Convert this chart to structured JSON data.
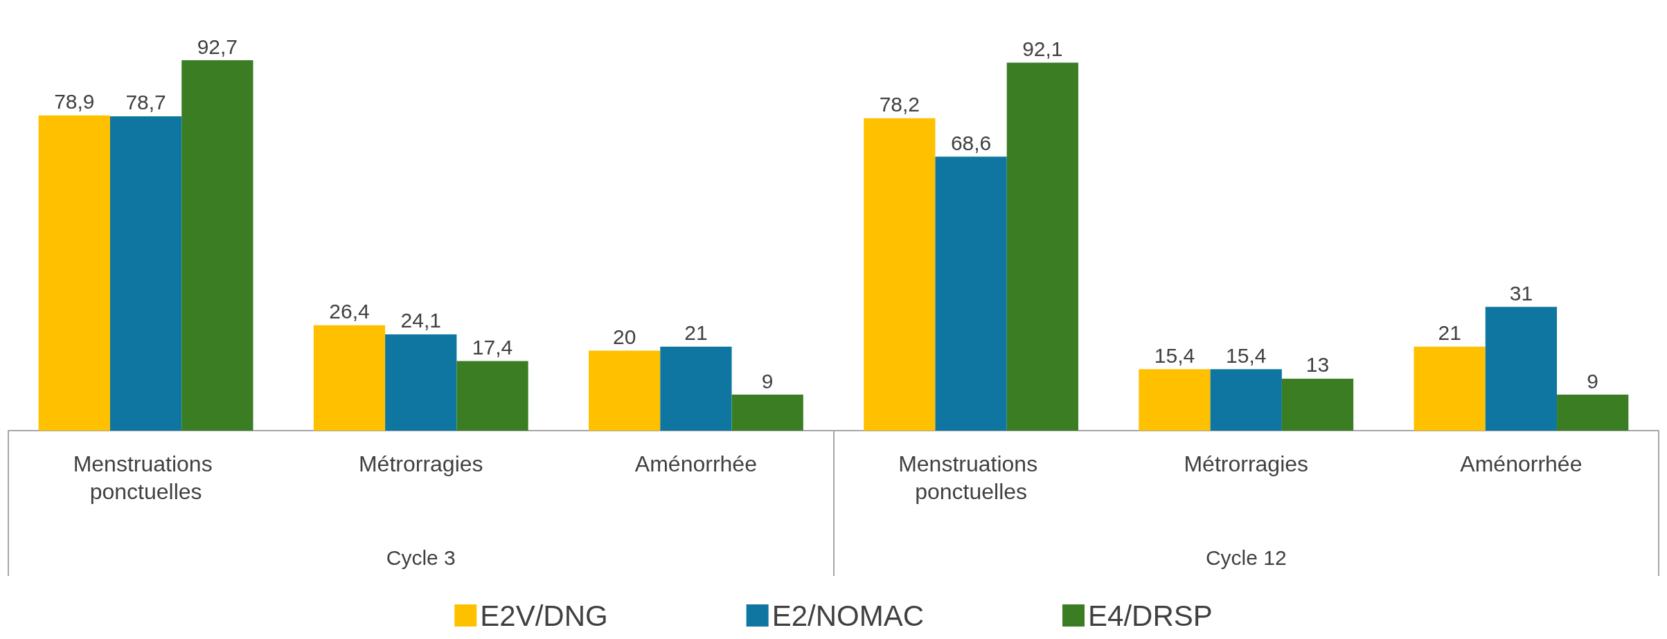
{
  "chart_data": {
    "type": "bar",
    "categories": [
      "Menstruations ponctuelles",
      "Métrorragies",
      "Aménorrhée",
      "Menstruations ponctuelles",
      "Métrorragies",
      "Aménorrhée"
    ],
    "annotations": [
      "Cycle 3",
      "Cycle 12"
    ],
    "series": [
      {
        "name": "E2V/DNG",
        "color": "#ffc000",
        "values": [
          78.9,
          26.4,
          20,
          78.2,
          15.4,
          21
        ],
        "value_labels": [
          "78,9",
          "26,4",
          "20",
          "78,2",
          "15,4",
          "21"
        ]
      },
      {
        "name": "E2/NOMAC",
        "color": "#0e76a0",
        "values": [
          78.7,
          24.1,
          21,
          68.6,
          15.4,
          31
        ],
        "value_labels": [
          "78,7",
          "24,1",
          "21",
          "68,6",
          "15,4",
          "31"
        ]
      },
      {
        "name": "E4/DRSP",
        "color": "#3a7d23",
        "values": [
          92.7,
          17.4,
          9,
          92.1,
          13,
          9
        ],
        "value_labels": [
          "92,7",
          "17,4",
          "9",
          "92,1",
          "13",
          "9"
        ]
      }
    ],
    "legend": "bottom"
  }
}
